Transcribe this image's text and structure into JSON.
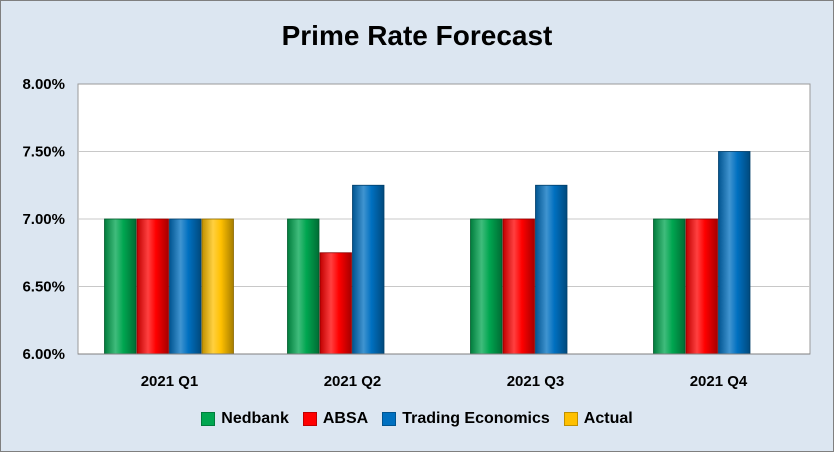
{
  "chart_data": {
    "type": "bar",
    "title": "Prime Rate Forecast",
    "categories": [
      "2021 Q1",
      "2021 Q2",
      "2021 Q3",
      "2021 Q4"
    ],
    "series": [
      {
        "name": "Nedbank",
        "color": "#00a650",
        "values": [
          7.0,
          7.0,
          7.0,
          7.0
        ]
      },
      {
        "name": "ABSA",
        "color": "#ff0000",
        "values": [
          7.0,
          6.75,
          7.0,
          7.0
        ]
      },
      {
        "name": "Trading Economics",
        "color": "#0070c0",
        "values": [
          7.0,
          7.25,
          7.25,
          7.5
        ]
      },
      {
        "name": "Actual",
        "color": "#ffc000",
        "values": [
          7.0,
          null,
          null,
          null
        ]
      }
    ],
    "ylim": [
      6.0,
      8.0
    ],
    "yticks": [
      "6.00%",
      "6.50%",
      "7.00%",
      "7.50%",
      "8.00%"
    ],
    "ytick_values": [
      6.0,
      6.5,
      7.0,
      7.5,
      8.0
    ],
    "grid": true,
    "legend_position": "bottom"
  }
}
